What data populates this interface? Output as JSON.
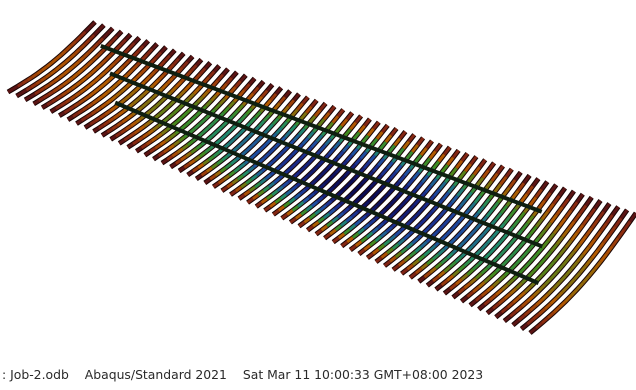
{
  "viewport": {
    "icon": "deformed-mesh-contour-plot",
    "colors": {
      "background": "#ffffff",
      "edge_bar": "#5a1414",
      "bar_outline": "#1a0505",
      "stiffener": "#0f1f10",
      "contour_scale": [
        "#6b1a1a",
        "#8a2a10",
        "#b35a00",
        "#3f8a1f",
        "#1f8a6a",
        "#1e4fa0",
        "#1a2b8a",
        "#0a0a50"
      ]
    }
  },
  "status_bar": {
    "odb": ": Job-2.odb",
    "solver": "Abaqus/Standard 2021",
    "timestamp": "Sat Mar 11 10:00:33 GMT+08:00 2023",
    "text_color": "#2a2a2a"
  }
}
